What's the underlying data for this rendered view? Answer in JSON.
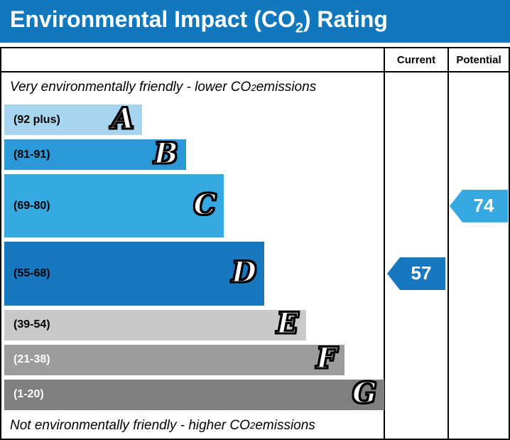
{
  "title": {
    "prefix": "Environmental Impact (CO",
    "subscript": "2",
    "suffix": ") Rating"
  },
  "table": {
    "current_header": "Current",
    "potential_header": "Potential"
  },
  "notes": {
    "top": {
      "prefix": "Very environmentally friendly - lower CO",
      "subscript": "2",
      "suffix": " emissions"
    },
    "bottom": {
      "prefix": "Not environmentally friendly - higher CO",
      "subscript": "2",
      "suffix": " emissions"
    }
  },
  "colors": {
    "header_bar": "#1278be",
    "border": "#000000"
  },
  "chart_data": {
    "type": "bar",
    "title": "Environmental Impact (CO2) Rating",
    "columns": [
      "Current",
      "Potential"
    ],
    "bands": [
      {
        "letter": "A",
        "range_label": "(92 plus)",
        "range_min": 92,
        "range_max": 100,
        "color": "#a8d6f0",
        "label_color": "#000000",
        "width_pct": 36
      },
      {
        "letter": "B",
        "range_label": "(81-91)",
        "range_min": 81,
        "range_max": 91,
        "color": "#2b99d8",
        "label_color": "#000000",
        "width_pct": 47.5
      },
      {
        "letter": "C",
        "range_label": "(69-80)",
        "range_min": 69,
        "range_max": 80,
        "color": "#37a9e2",
        "label_color": "#000000",
        "width_pct": 57.5
      },
      {
        "letter": "D",
        "range_label": "(55-68)",
        "range_min": 55,
        "range_max": 68,
        "color": "#1777bf",
        "label_color": "#000000",
        "width_pct": 68
      },
      {
        "letter": "E",
        "range_label": "(39-54)",
        "range_min": 39,
        "range_max": 54,
        "color": "#c9c9c9",
        "label_color": "#000000",
        "width_pct": 79
      },
      {
        "letter": "F",
        "range_label": "(21-38)",
        "range_min": 21,
        "range_max": 38,
        "color": "#9c9c9c",
        "label_color": "#ffffff",
        "width_pct": 89
      },
      {
        "letter": "G",
        "range_label": "(1-20)",
        "range_min": 1,
        "range_max": 20,
        "color": "#7f7f7f",
        "label_color": "#ffffff",
        "width_pct": 99.5
      }
    ],
    "current": {
      "value": 57,
      "band": "D",
      "color": "#1777bf"
    },
    "potential": {
      "value": 74,
      "band": "C",
      "color": "#37a9e2"
    }
  }
}
